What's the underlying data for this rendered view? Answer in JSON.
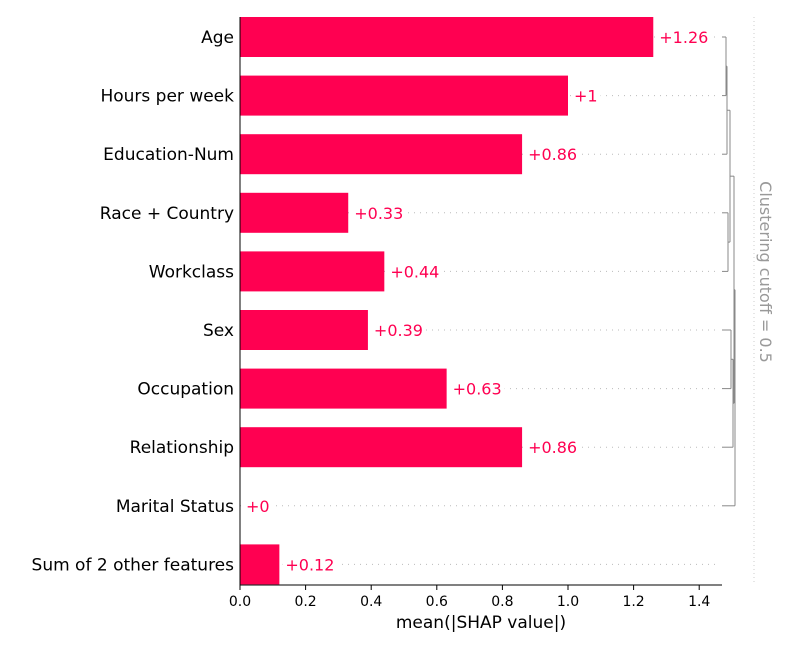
{
  "chart_data": {
    "type": "bar",
    "orientation": "horizontal",
    "categories": [
      "Age",
      "Hours per week",
      "Education-Num",
      "Race + Country",
      "Workclass",
      "Sex",
      "Occupation",
      "Relationship",
      "Marital Status",
      "Sum of 2 other features"
    ],
    "values": [
      1.26,
      1.0,
      0.86,
      0.33,
      0.44,
      0.39,
      0.63,
      0.86,
      0.0,
      0.12
    ],
    "value_labels": [
      "+1.26",
      "+1",
      "+0.86",
      "+0.33",
      "+0.44",
      "+0.39",
      "+0.63",
      "+0.86",
      "+0",
      "+0.12"
    ],
    "xlabel": "mean(|SHAP value|)",
    "xlim": [
      0,
      1.47
    ],
    "xticks": [
      0.0,
      0.2,
      0.4,
      0.6,
      0.8,
      1.0,
      1.2,
      1.4
    ],
    "xtick_labels": [
      "0.0",
      "0.2",
      "0.4",
      "0.6",
      "0.8",
      "1.0",
      "1.2",
      "1.4"
    ],
    "bar_color": "#ff0051",
    "dendrogram_label": "Clustering cutoff = 0.5"
  }
}
